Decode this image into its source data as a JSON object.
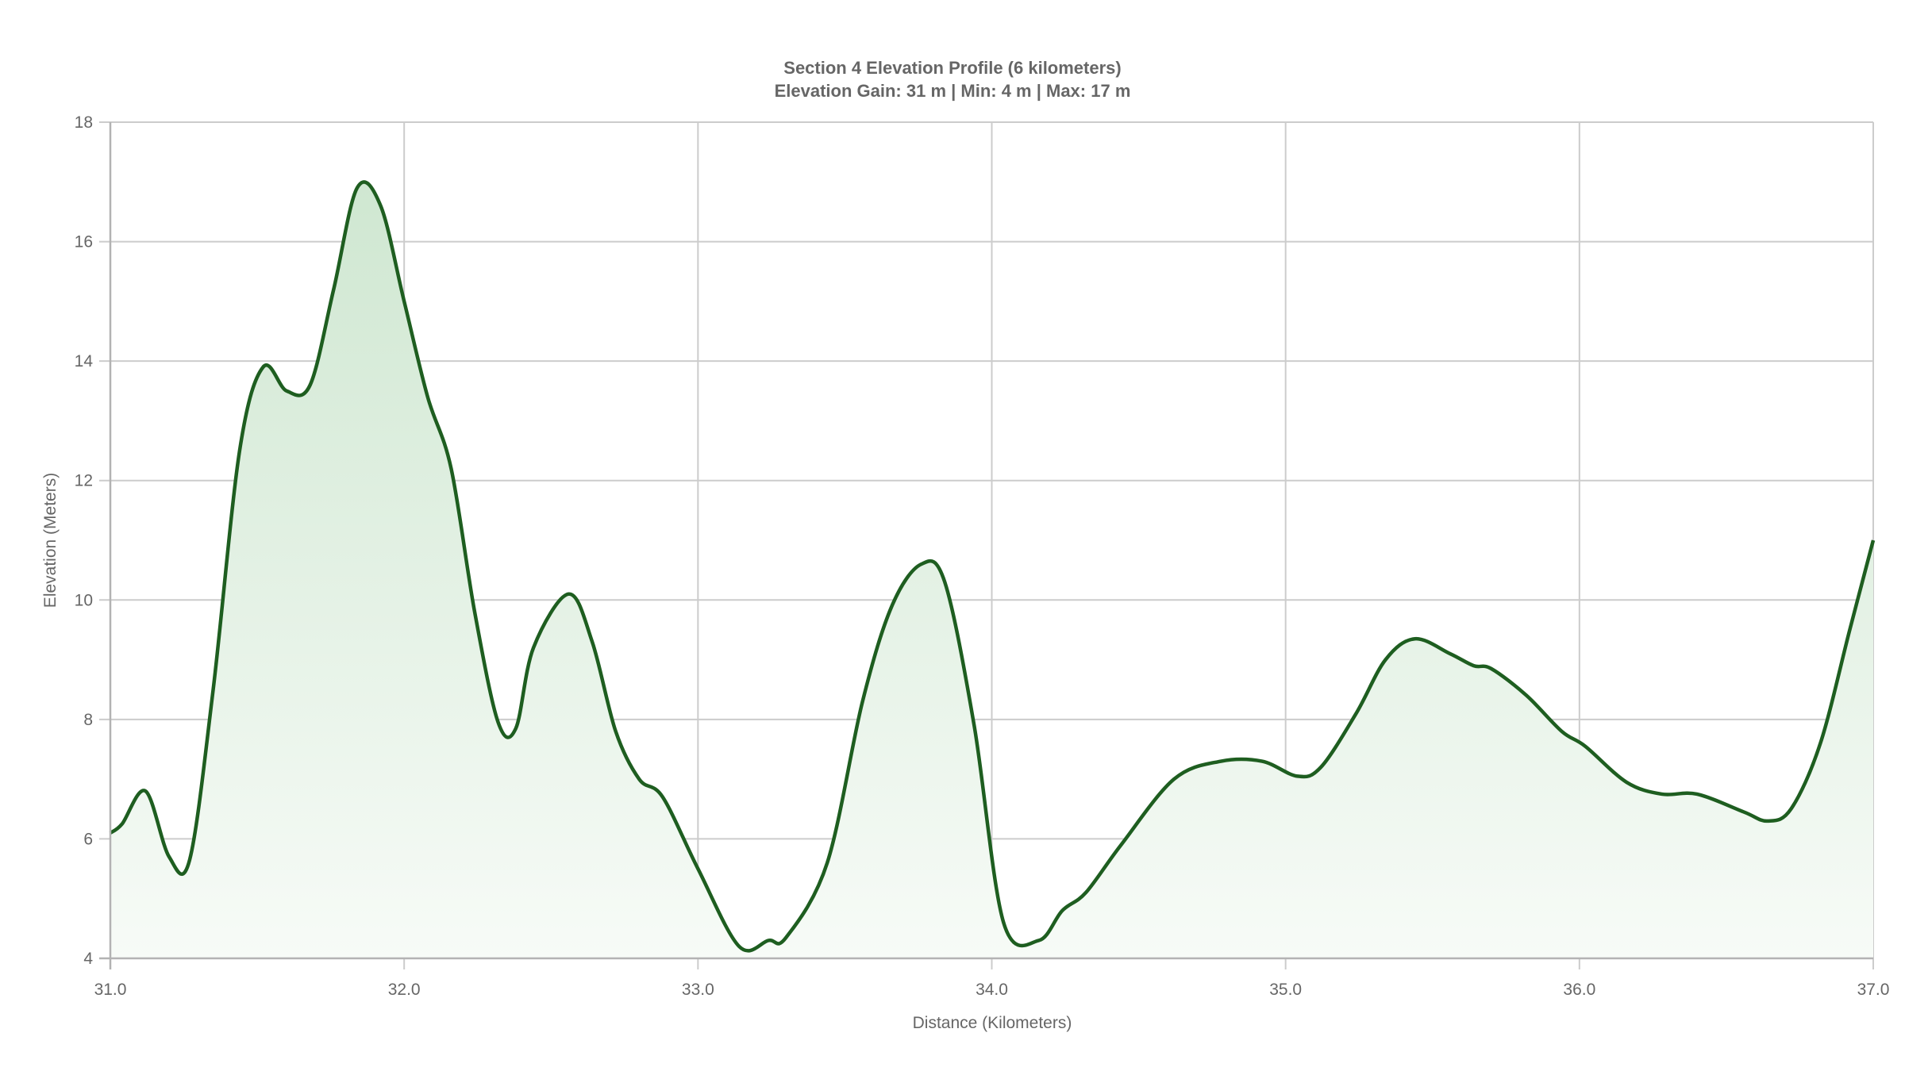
{
  "chart": {
    "title": "Section 4 Elevation Profile (6 kilometers)",
    "subtitle": "Elevation Gain: 31 m | Min: 4 m | Max: 17 m",
    "colors": {
      "line": "#1e5e20",
      "fill_top": "#cfe7d1",
      "fill_bottom": "#f7fbf7",
      "grid": "#cccccc",
      "axis": "#b3b3b3",
      "text": "#666666"
    }
  },
  "chart_data": {
    "type": "area",
    "title": "Section 4 Elevation Profile (6 kilometers)",
    "subtitle": "Elevation Gain: 31 m | Min: 4 m | Max: 17 m",
    "xlabel": "Distance (Kilometers)",
    "ylabel": "Elevation (Meters)",
    "xlim": [
      31.0,
      37.0
    ],
    "ylim": [
      4,
      18
    ],
    "xticks": [
      "31.0",
      "32.0",
      "33.0",
      "34.0",
      "35.0",
      "36.0",
      "37.0"
    ],
    "yticks": [
      "4",
      "6",
      "8",
      "10",
      "12",
      "14",
      "16",
      "18"
    ],
    "grid": true,
    "legend": null,
    "series": [
      {
        "name": "Elevation",
        "x": [
          31.0,
          31.04,
          31.12,
          31.2,
          31.27,
          31.35,
          31.44,
          31.52,
          31.6,
          31.68,
          31.76,
          31.84,
          31.92,
          32.0,
          32.08,
          32.16,
          32.24,
          32.32,
          32.38,
          32.44,
          32.56,
          32.64,
          32.72,
          32.8,
          32.88,
          33.0,
          33.14,
          33.24,
          33.3,
          33.44,
          33.56,
          33.66,
          33.76,
          33.84,
          33.94,
          34.04,
          34.16,
          34.24,
          34.32,
          34.44,
          34.62,
          34.78,
          34.92,
          35.04,
          35.12,
          35.24,
          35.34,
          35.44,
          35.56,
          35.64,
          35.7,
          35.82,
          35.94,
          36.02,
          36.16,
          36.28,
          36.4,
          36.56,
          36.64,
          36.72,
          36.82,
          36.92,
          37.0
        ],
        "y": [
          6.1,
          6.25,
          6.8,
          5.7,
          5.65,
          8.5,
          12.5,
          13.9,
          13.5,
          13.6,
          15.2,
          16.9,
          16.6,
          15.0,
          13.4,
          12.2,
          9.8,
          7.95,
          7.85,
          9.2,
          10.1,
          9.3,
          7.8,
          7.0,
          6.7,
          5.5,
          4.2,
          4.3,
          4.35,
          5.6,
          8.3,
          9.9,
          10.6,
          10.3,
          7.9,
          4.6,
          4.3,
          4.8,
          5.1,
          5.9,
          7.0,
          7.3,
          7.3,
          7.05,
          7.2,
          8.1,
          9.0,
          9.35,
          9.1,
          8.9,
          8.85,
          8.4,
          7.8,
          7.55,
          6.95,
          6.75,
          6.75,
          6.45,
          6.3,
          6.5,
          7.6,
          9.5,
          11.0
        ]
      }
    ]
  }
}
